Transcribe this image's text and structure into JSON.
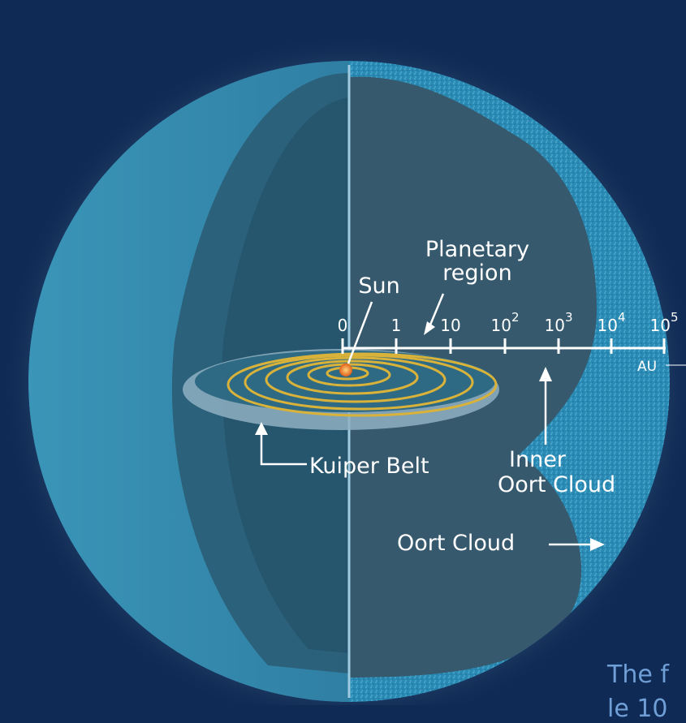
{
  "labels": {
    "planetary_region_line1": "Planetary",
    "planetary_region_line2": "region",
    "sun": "Sun",
    "kuiper_belt": "Kuiper Belt",
    "inner_oort_line1": "Inner",
    "inner_oort_line2": "Oort Cloud",
    "oort_cloud": "Oort Cloud",
    "unit": "AU"
  },
  "scale": {
    "ticks": [
      {
        "base": "0",
        "exp": ""
      },
      {
        "base": "1",
        "exp": ""
      },
      {
        "base": "10",
        "exp": ""
      },
      {
        "base": "10",
        "exp": "2"
      },
      {
        "base": "10",
        "exp": "3"
      },
      {
        "base": "10",
        "exp": "4"
      },
      {
        "base": "10",
        "exp": "5"
      }
    ]
  },
  "caption": {
    "line1": "The f",
    "line2": "le 10"
  },
  "colors": {
    "background": "#0f2a55",
    "outer_shell": "#2f8fb5",
    "inner_face": "#355a70",
    "orbits": "#d9b23a",
    "sun": "#f08a2a",
    "caption": "#6f9fd6"
  }
}
